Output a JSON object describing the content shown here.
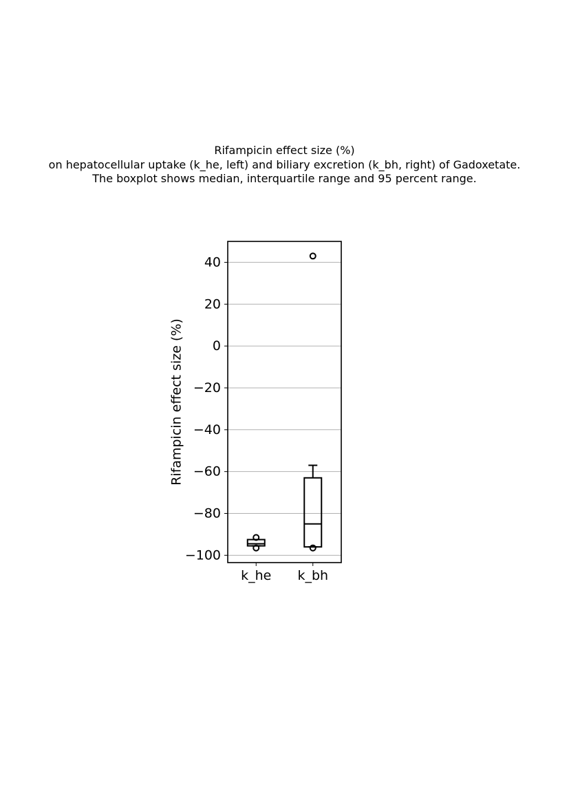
{
  "chart_data": {
    "type": "box",
    "title_lines": [
      "Rifampicin effect size (%)",
      "on hepatocellular uptake (k_he, left) and biliary excretion (k_bh, right) of Gadoxetate.",
      "The boxplot shows median, interquartile range and 95 percent range."
    ],
    "xlabel": "",
    "ylabel": "Rifampicin effect size (%)",
    "ylim": [
      -103.5,
      50
    ],
    "yticks": [
      40,
      20,
      0,
      -20,
      -40,
      -60,
      -80,
      -100
    ],
    "ytick_labels": [
      "40",
      "20",
      "0",
      "−20",
      "−40",
      "−60",
      "−80",
      "−100"
    ],
    "grid": "horizontal",
    "categories": [
      "k_he",
      "k_bh"
    ],
    "boxes": [
      {
        "category": "k_he",
        "whisker_low": -95.5,
        "q1": -95.5,
        "median": -94.5,
        "q3": -92.5,
        "whisker_high": -92.5,
        "outliers": [
          -91.5,
          -96.5
        ]
      },
      {
        "category": "k_bh",
        "whisker_low": -96,
        "q1": -96,
        "median": -85,
        "q3": -63,
        "whisker_high": -57,
        "outliers": [
          43,
          -96.5
        ]
      }
    ],
    "colors": {
      "box": "#000000",
      "grid": "#b0b0b0"
    }
  }
}
